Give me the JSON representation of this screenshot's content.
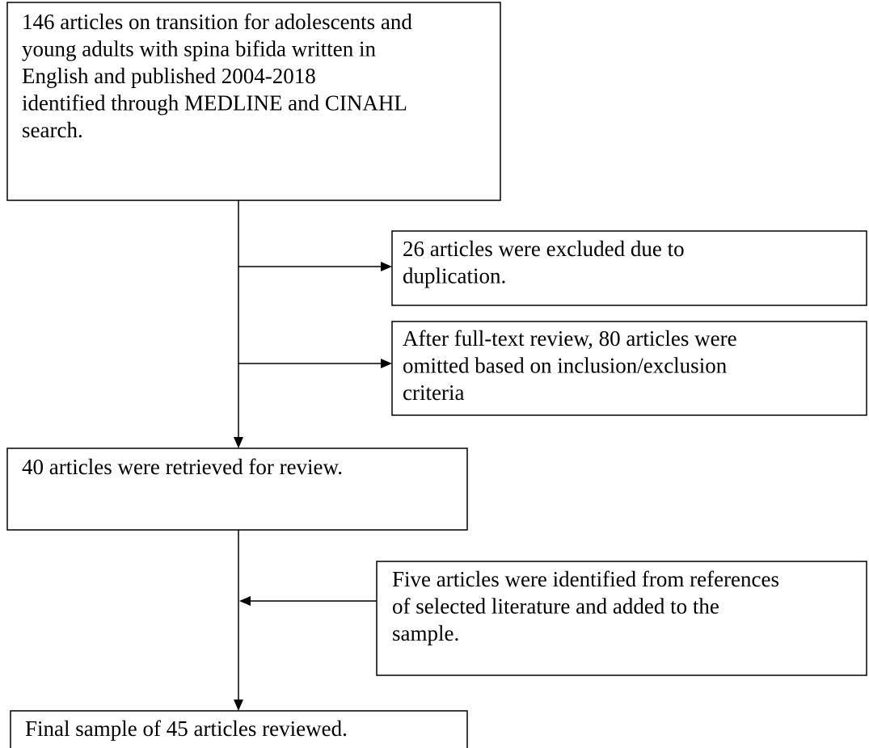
{
  "nodes": [
    {
      "lines": [
        "146 articles on transition for adolescents and",
        "young adults with spina bifida written in",
        "English and published 2004-2018",
        "identified through MEDLINE and CINAHL",
        "search."
      ]
    },
    {
      "lines": [
        "26 articles were excluded due to",
        "duplication."
      ]
    },
    {
      "lines": [
        "After full-text review, 80 articles were",
        "omitted based on inclusion/exclusion",
        "criteria"
      ]
    },
    {
      "lines": [
        "40 articles were retrieved for review."
      ]
    },
    {
      "lines": [
        "Five articles were identified from references",
        "of selected literature and added to the",
        "sample."
      ]
    },
    {
      "lines": [
        "Final sample of 45 articles reviewed."
      ]
    }
  ]
}
